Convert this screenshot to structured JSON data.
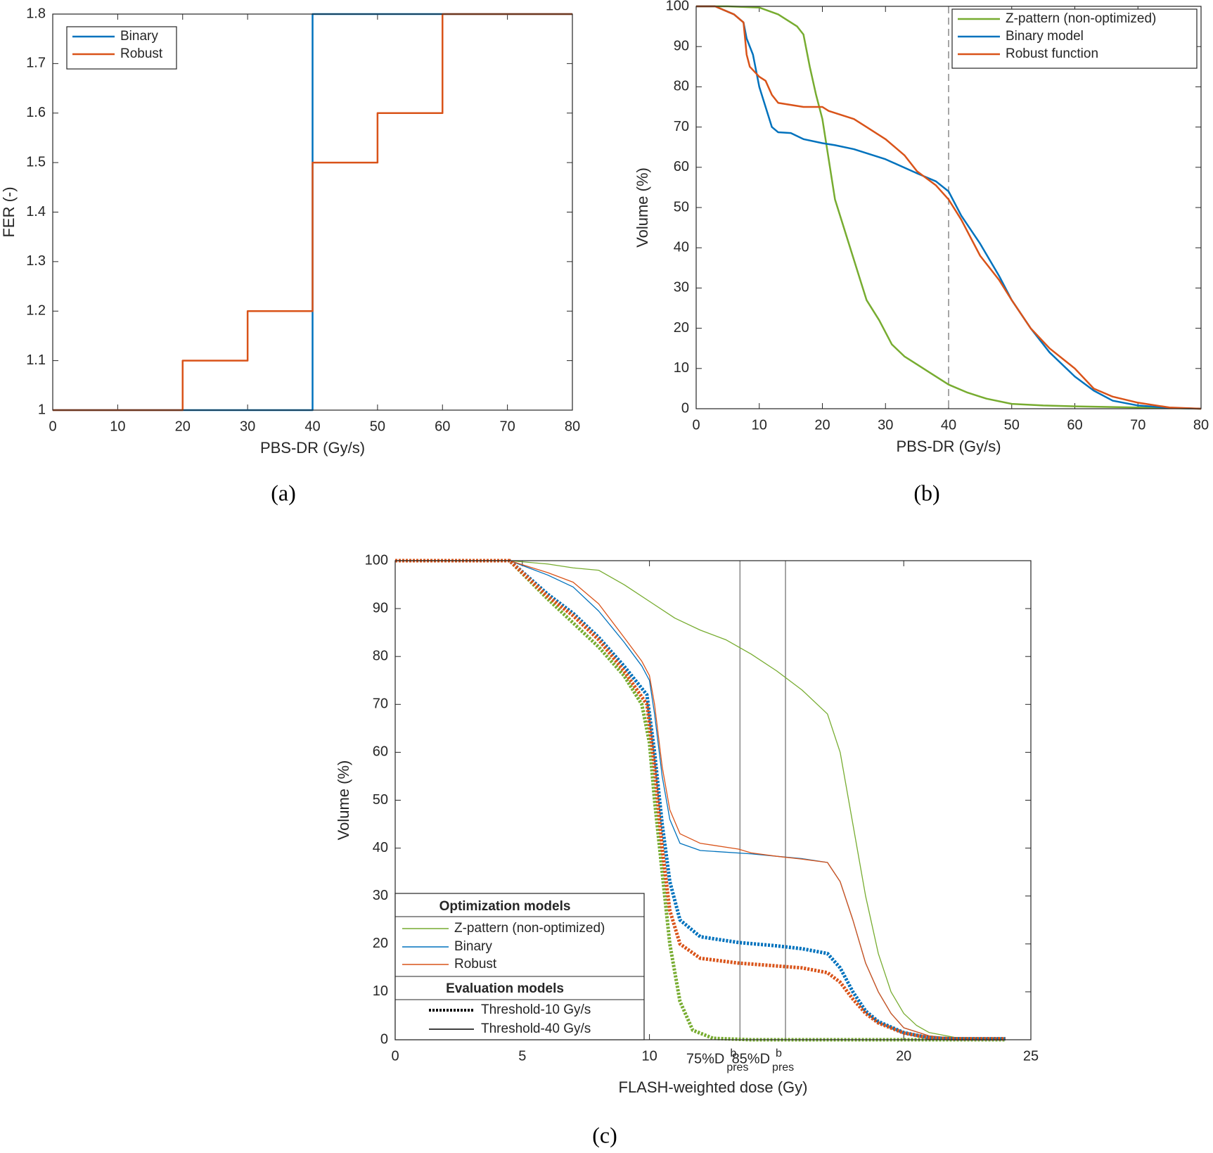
{
  "chart_data": [
    {
      "type": "line",
      "caption": "(a)",
      "xlabel": "PBS-DR (Gy/s)",
      "ylabel": "FER (-)",
      "xlim": [
        0,
        80
      ],
      "ylim": [
        1,
        1.8
      ],
      "xticks": [
        0,
        10,
        20,
        30,
        40,
        50,
        60,
        70,
        80
      ],
      "yticks": [
        1,
        1.1,
        1.2,
        1.3,
        1.4,
        1.5,
        1.6,
        1.7,
        1.8
      ],
      "legend": "upper left",
      "series": [
        {
          "name": "Binary",
          "color": "#0072BD",
          "x": [
            0,
            40,
            40,
            80
          ],
          "values": [
            1,
            1,
            1.8,
            1.8
          ]
        },
        {
          "name": "Robust",
          "color": "#D95319",
          "x": [
            0,
            20,
            20,
            30,
            30,
            40,
            40,
            50,
            50,
            60,
            60,
            80
          ],
          "values": [
            1,
            1,
            1.1,
            1.1,
            1.2,
            1.2,
            1.5,
            1.5,
            1.6,
            1.6,
            1.8,
            1.8
          ]
        }
      ]
    },
    {
      "type": "line",
      "caption": "(b)",
      "xlabel": "PBS-DR (Gy/s)",
      "ylabel": "Volume (%)",
      "xlim": [
        0,
        80
      ],
      "ylim": [
        0,
        100
      ],
      "xticks": [
        0,
        10,
        20,
        30,
        40,
        50,
        60,
        70,
        80
      ],
      "yticks": [
        0,
        10,
        20,
        30,
        40,
        50,
        60,
        70,
        80,
        90,
        100
      ],
      "legend": "upper right",
      "vline": 40,
      "vline_style": "dashed",
      "series": [
        {
          "name": "Z-pattern (non-optimized)",
          "color": "#77AC30",
          "x": [
            0,
            5,
            10,
            13,
            16,
            17,
            18,
            19,
            20,
            21,
            22,
            24,
            26,
            27,
            29,
            31,
            33,
            35,
            37,
            40,
            43,
            46,
            50,
            55,
            60,
            70,
            80
          ],
          "values": [
            100,
            100,
            99.7,
            98,
            95,
            93,
            85,
            78,
            72,
            62,
            52,
            42,
            32,
            27,
            22,
            16,
            13,
            11,
            9,
            6,
            4,
            2.5,
            1.2,
            0.8,
            0.6,
            0.3,
            0
          ]
        },
        {
          "name": "Binary model",
          "color": "#0072BD",
          "x": [
            0,
            3,
            6,
            7.5,
            8,
            9,
            10,
            11,
            12,
            13,
            15,
            17,
            20,
            22,
            25,
            30,
            35,
            38,
            40,
            42,
            45,
            48,
            50,
            53,
            56,
            60,
            63,
            66,
            70,
            75,
            80
          ],
          "values": [
            100,
            100,
            98,
            96,
            92,
            88,
            80,
            75,
            70,
            68.7,
            68.5,
            67,
            66,
            65.5,
            64.5,
            62,
            58.5,
            56.5,
            54,
            48,
            41,
            33,
            27,
            20,
            14,
            8,
            4.5,
            2,
            0.8,
            0.2,
            0
          ]
        },
        {
          "name": "Robust function",
          "color": "#D95319",
          "x": [
            0,
            3,
            6,
            7.5,
            8,
            8.5,
            10,
            11,
            12,
            13,
            15,
            17,
            20,
            21,
            23,
            25,
            27,
            30,
            33,
            35,
            38,
            40,
            42,
            45,
            48,
            50,
            53,
            56,
            60,
            63,
            66,
            70,
            75,
            80
          ],
          "values": [
            100,
            100,
            98,
            96,
            88,
            85,
            82.5,
            81.5,
            78,
            76,
            75.5,
            75,
            75,
            74,
            73,
            72,
            70,
            67,
            63,
            59,
            55.5,
            52,
            47,
            38,
            32,
            27,
            20,
            15,
            10,
            5,
            3,
            1.5,
            0.3,
            0
          ]
        }
      ]
    },
    {
      "type": "line",
      "caption": "(c)",
      "xlabel": "FLASH-weighted dose (Gy)",
      "ylabel": "Volume (%)",
      "xlim": [
        0,
        25
      ],
      "ylim": [
        0,
        100
      ],
      "xticks": [
        0,
        5,
        10,
        20,
        25
      ],
      "yticks": [
        0,
        10,
        20,
        30,
        40,
        50,
        60,
        70,
        80,
        90,
        100
      ],
      "legend": "lower left",
      "annotations": [
        {
          "x": 13.56,
          "label": "75%D",
          "sup": "b",
          "sub": "pres"
        },
        {
          "x": 15.35,
          "label": "85%D",
          "sup": "b",
          "sub": "pres"
        }
      ],
      "legend_groups": [
        {
          "title": "Optimization models",
          "entries": [
            {
              "name": "Z-pattern (non-optimized)",
              "color": "#77AC30"
            },
            {
              "name": "Binary",
              "color": "#0072BD"
            },
            {
              "name": "Robust",
              "color": "#D95319"
            }
          ]
        },
        {
          "title": "Evaluation models",
          "entries": [
            {
              "name": "Threshold-10 Gy/s",
              "style": "dotted"
            },
            {
              "name": "Threshold-40 Gy/s",
              "style": "solid"
            }
          ]
        }
      ],
      "series": [
        {
          "model": 0,
          "evaluation": 1,
          "x": [
            0,
            4.5,
            6,
            7,
            8,
            9,
            10,
            11,
            12,
            13,
            14,
            15,
            16,
            17,
            17.5,
            18,
            18.5,
            19,
            19.5,
            20,
            20.5,
            21,
            22,
            24
          ],
          "values": [
            100,
            100,
            99.3,
            98.5,
            98,
            95,
            91.5,
            88,
            85.5,
            83.5,
            80.5,
            77,
            73,
            68,
            60,
            45,
            30,
            18,
            10,
            5.5,
            3,
            1.5,
            0.5,
            0.2
          ]
        },
        {
          "model": 1,
          "evaluation": 1,
          "x": [
            0,
            4.5,
            6,
            7,
            8,
            9,
            9.7,
            10,
            10.2,
            10.5,
            10.8,
            11.2,
            12,
            14,
            15,
            16,
            17,
            17.5,
            18,
            18.5,
            19,
            19.5,
            20,
            21,
            22,
            24
          ],
          "values": [
            100,
            100,
            97,
            94.5,
            89.5,
            83,
            78,
            75,
            68,
            55,
            46,
            41,
            39.5,
            38.8,
            38.3,
            37.8,
            37,
            33,
            25,
            16,
            10,
            5.5,
            2.5,
            0.8,
            0.3,
            0.2
          ]
        },
        {
          "model": 2,
          "evaluation": 1,
          "x": [
            0,
            4.5,
            6,
            7,
            8,
            9,
            9.7,
            10,
            10.2,
            10.5,
            10.8,
            11.2,
            12,
            13.5,
            14,
            15,
            16,
            17,
            17.5,
            18,
            18.5,
            19,
            19.5,
            20,
            21,
            22,
            24
          ],
          "values": [
            100,
            100,
            97.5,
            95.5,
            91,
            84,
            79,
            76,
            70,
            57,
            48,
            43,
            41,
            39.8,
            39,
            38.3,
            37.7,
            37,
            33,
            25,
            16,
            10,
            5.5,
            2.5,
            0.8,
            0.3,
            0.2
          ]
        },
        {
          "model": 0,
          "evaluation": 0,
          "x": [
            0,
            4.5,
            6,
            7,
            8,
            9,
            9.7,
            10,
            10.2,
            10.5,
            10.8,
            11.2,
            11.7,
            12.5,
            14,
            24
          ],
          "values": [
            100,
            100,
            92,
            87,
            82,
            76,
            70,
            62,
            50,
            35,
            20,
            8,
            2,
            0.3,
            0,
            0
          ]
        },
        {
          "model": 1,
          "evaluation": 0,
          "x": [
            0,
            4.5,
            6,
            7,
            8,
            9,
            9.9,
            10.2,
            10.5,
            10.8,
            11.2,
            12,
            13.5,
            15,
            16,
            17,
            17.5,
            18,
            18.5,
            19,
            20,
            21,
            22,
            24
          ],
          "values": [
            100,
            100,
            93,
            89,
            84,
            78,
            72,
            60,
            45,
            33,
            25,
            21.5,
            20.3,
            19.6,
            19,
            18,
            15,
            10,
            6,
            3.8,
            1.5,
            0.4,
            0.2,
            0.2
          ]
        },
        {
          "model": 2,
          "evaluation": 0,
          "x": [
            0,
            4.5,
            6,
            7,
            8,
            9,
            9.9,
            10.2,
            10.5,
            10.8,
            11.2,
            12,
            13.5,
            15,
            16,
            17,
            17.5,
            18,
            18.5,
            19,
            20,
            21,
            22,
            24
          ],
          "values": [
            100,
            100,
            92.5,
            88.5,
            83.5,
            77,
            70,
            57,
            40,
            27,
            20,
            17,
            16,
            15.4,
            15,
            14,
            12,
            8.5,
            5.5,
            3.5,
            1.4,
            0.4,
            0.2,
            0.2
          ]
        }
      ]
    }
  ]
}
